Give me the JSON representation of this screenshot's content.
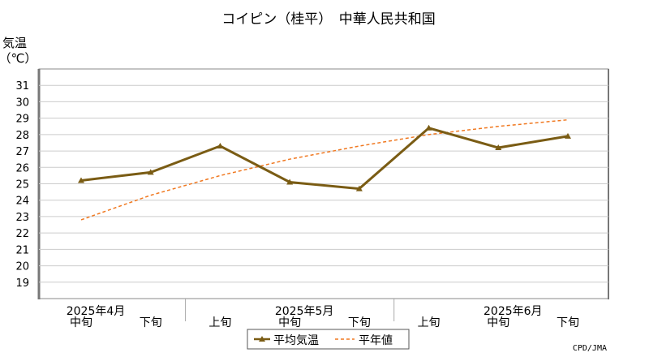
{
  "chart_data": {
    "type": "line",
    "title": "コイピン（桂平）　中華人民共和国",
    "ylabel_line1": "気温",
    "ylabel_line2": "（℃）",
    "ylim": [
      18,
      32
    ],
    "y_ticks": [
      19,
      20,
      21,
      22,
      23,
      24,
      25,
      26,
      27,
      28,
      29,
      30,
      31
    ],
    "grid": true,
    "legend_position": "bottom-center",
    "x_period_labels": [
      "中旬",
      "下旬",
      "上旬",
      "中旬",
      "下旬",
      "上旬",
      "中旬",
      "下旬"
    ],
    "x_month_labels": [
      {
        "label": "2025年4月",
        "at": 0
      },
      {
        "label": "2025年5月",
        "at": 3
      },
      {
        "label": "2025年6月",
        "at": 6
      }
    ],
    "series": [
      {
        "name": "平均気温",
        "style": "solid-marker",
        "color": "#7a5c14",
        "values": [
          25.2,
          25.7,
          27.3,
          25.1,
          24.7,
          28.4,
          27.2,
          27.9
        ]
      },
      {
        "name": "平年値",
        "style": "dashed",
        "color": "#f07820",
        "values": [
          22.8,
          24.3,
          25.5,
          26.5,
          27.3,
          28.0,
          28.5,
          28.9
        ]
      }
    ],
    "credit": "CPD/JMA"
  }
}
